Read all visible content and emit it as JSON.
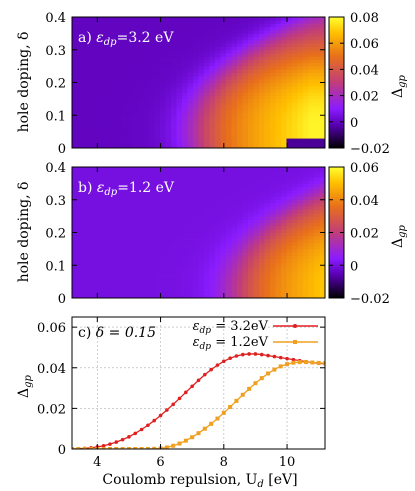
{
  "chart_data": [
    {
      "type": "heatmap",
      "panel_label": "a) ",
      "param_label": "ε",
      "param_sub": "dp",
      "param_value": "=3.2 eV",
      "ylabel": "hole doping, δ",
      "ylim": [
        0,
        0.4
      ],
      "yticks": [
        "0",
        "0.1",
        "0.2",
        "0.3",
        "0.4"
      ],
      "xlim": [
        3.2,
        11.2
      ],
      "colorbar": {
        "label": "Δ",
        "label_sub": "gp",
        "range": [
          -0.02,
          0.08
        ],
        "ticks": [
          "0.08",
          "0.06",
          "0.04",
          "0.02",
          "0",
          "−0.02"
        ]
      },
      "model": {
        "peak": 0.078,
        "onset_u": 7.0,
        "delta_center": 0.05,
        "pocket": true
      }
    },
    {
      "type": "heatmap",
      "panel_label": "b) ",
      "param_label": "ε",
      "param_sub": "dp",
      "param_value": "=1.2 eV",
      "ylabel": "hole doping, δ",
      "ylim": [
        0,
        0.4
      ],
      "yticks": [
        "0",
        "0.1",
        "0.2",
        "0.3",
        "0.4"
      ],
      "xlim": [
        3.2,
        11.2
      ],
      "colorbar": {
        "label": "Δ",
        "label_sub": "gp",
        "range": [
          -0.02,
          0.06
        ],
        "ticks": [
          "0.06",
          "0.04",
          "0.02",
          "0",
          "−0.02"
        ]
      },
      "model": {
        "peak": 0.058,
        "onset_u": 8.3,
        "delta_center": 0.02,
        "pocket": false
      }
    },
    {
      "type": "line",
      "panel_label": "c) ",
      "panel_param": "δ = 0.15",
      "xlabel": "Coulomb repulsion, U",
      "xlabel_sub": "d",
      "xlabel_unit": " [eV]",
      "ylabel": "Δ",
      "ylabel_sub": "gp",
      "xlim": [
        3.2,
        11.2
      ],
      "ylim": [
        0,
        0.065
      ],
      "xticks": [
        "4",
        "6",
        "8",
        "10"
      ],
      "yticks": [
        "0",
        "0.02",
        "0.04",
        "0.06"
      ],
      "grid": true,
      "legend_position": "top-right",
      "series": [
        {
          "legend_sym": "ε",
          "legend_sub": "dp",
          "legend_val": " = 3.2eV",
          "color": "#e02020",
          "marker": "circle",
          "x": [
            3.2,
            3.4,
            3.6,
            3.8,
            4.0,
            4.2,
            4.4,
            4.6,
            4.8,
            5.0,
            5.2,
            5.4,
            5.6,
            5.8,
            6.0,
            6.2,
            6.4,
            6.6,
            6.8,
            7.0,
            7.2,
            7.4,
            7.6,
            7.8,
            8.0,
            8.2,
            8.4,
            8.6,
            8.8,
            9.0,
            9.2,
            9.4,
            9.6,
            9.8,
            10.0,
            10.2,
            10.4,
            10.6,
            10.8,
            11.0,
            11.2
          ],
          "y": [
            0,
            0.0001,
            0.0003,
            0.0006,
            0.001,
            0.0016,
            0.0024,
            0.0034,
            0.0046,
            0.006,
            0.0077,
            0.0096,
            0.0117,
            0.014,
            0.0165,
            0.0192,
            0.022,
            0.0249,
            0.0279,
            0.0309,
            0.0338,
            0.0366,
            0.0391,
            0.0413,
            0.0432,
            0.0447,
            0.0458,
            0.0465,
            0.0468,
            0.0468,
            0.0465,
            0.046,
            0.0455,
            0.045,
            0.0445,
            0.044,
            0.0435,
            0.043,
            0.0426,
            0.0422,
            0.042
          ]
        },
        {
          "legend_sym": "ε",
          "legend_sub": "dp",
          "legend_val": " = 1.2eV",
          "color": "#f0a020",
          "marker": "square",
          "x": [
            3.2,
            3.4,
            3.6,
            3.8,
            4.0,
            4.2,
            4.4,
            4.6,
            4.8,
            5.0,
            5.2,
            5.4,
            5.6,
            5.8,
            6.0,
            6.2,
            6.4,
            6.6,
            6.8,
            7.0,
            7.2,
            7.4,
            7.6,
            7.8,
            8.0,
            8.2,
            8.4,
            8.6,
            8.8,
            9.0,
            9.2,
            9.4,
            9.6,
            9.8,
            10.0,
            10.2,
            10.4,
            10.6,
            10.8,
            11.0,
            11.2
          ],
          "y": [
            0,
            0,
            0,
            0,
            0,
            0,
            0,
            0,
            0,
            0,
            0,
            0,
            0,
            0.0001,
            0.0003,
            0.0008,
            0.0016,
            0.0027,
            0.0041,
            0.0058,
            0.0078,
            0.01,
            0.0124,
            0.015,
            0.0178,
            0.0207,
            0.0237,
            0.0267,
            0.0296,
            0.0324,
            0.0349,
            0.0372,
            0.0391,
            0.0407,
            0.0418,
            0.0425,
            0.0428,
            0.0428,
            0.0426,
            0.0424,
            0.0422
          ]
        }
      ]
    }
  ]
}
